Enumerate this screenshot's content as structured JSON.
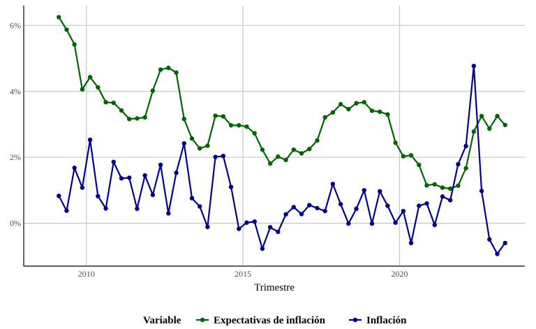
{
  "chart_data": {
    "type": "line",
    "title": "",
    "xlabel": "Trimestre",
    "ylabel": "",
    "xlim": [
      2008.0,
      2024.0
    ],
    "ylim": [
      -1.3,
      6.6
    ],
    "x_ticks": [
      2010,
      2015,
      2020
    ],
    "x_tick_labels": [
      "2010",
      "2015",
      "2020"
    ],
    "y_ticks": [
      0,
      2,
      4,
      6
    ],
    "y_tick_labels": [
      "0%",
      "2%",
      "4%",
      "6%"
    ],
    "grid": true,
    "legend": {
      "title": "Variable",
      "position": "bottom"
    },
    "x": [
      2009.12,
      2009.37,
      2009.62,
      2009.87,
      2010.12,
      2010.37,
      2010.62,
      2010.87,
      2011.12,
      2011.37,
      2011.62,
      2011.87,
      2012.12,
      2012.37,
      2012.62,
      2012.87,
      2013.12,
      2013.37,
      2013.62,
      2013.87,
      2014.12,
      2014.37,
      2014.62,
      2014.87,
      2015.12,
      2015.37,
      2015.62,
      2015.87,
      2016.12,
      2016.37,
      2016.62,
      2016.87,
      2017.12,
      2017.37,
      2017.62,
      2017.87,
      2018.12,
      2018.37,
      2018.62,
      2018.87,
      2019.12,
      2019.37,
      2019.62,
      2019.87,
      2020.12,
      2020.37,
      2020.62,
      2020.87,
      2021.12,
      2021.37,
      2021.62,
      2021.87,
      2022.12,
      2022.37,
      2022.62,
      2022.87,
      2023.12,
      2023.37
    ],
    "series": [
      {
        "name": "Expectativas de inflación",
        "color": "#006400",
        "values": [
          6.25,
          5.87,
          5.42,
          4.06,
          4.43,
          4.12,
          3.67,
          3.65,
          3.42,
          3.16,
          3.18,
          3.21,
          4.02,
          4.66,
          4.71,
          4.57,
          3.16,
          2.57,
          2.27,
          2.35,
          3.26,
          3.24,
          2.97,
          2.97,
          2.93,
          2.73,
          2.23,
          1.81,
          2.02,
          1.92,
          2.23,
          2.12,
          2.25,
          2.51,
          3.21,
          3.36,
          3.61,
          3.46,
          3.64,
          3.67,
          3.41,
          3.38,
          3.3,
          2.44,
          2.03,
          2.06,
          1.77,
          1.15,
          1.18,
          1.08,
          1.05,
          1.14,
          1.67,
          2.78,
          3.25,
          2.87,
          3.25,
          2.98
        ]
      },
      {
        "name": "Inflación",
        "color": "#00008b",
        "values": [
          0.83,
          0.38,
          1.68,
          1.08,
          2.53,
          0.82,
          0.45,
          1.86,
          1.36,
          1.38,
          0.44,
          1.45,
          0.86,
          1.77,
          0.3,
          1.53,
          2.42,
          0.76,
          0.51,
          -0.11,
          2.01,
          2.04,
          1.1,
          -0.17,
          0.02,
          0.05,
          -0.77,
          -0.12,
          -0.26,
          0.27,
          0.49,
          0.28,
          0.55,
          0.46,
          0.37,
          1.19,
          0.58,
          -0.01,
          0.44,
          1.0,
          -0.01,
          0.97,
          0.53,
          0.02,
          0.37,
          -0.6,
          0.53,
          0.6,
          -0.05,
          0.81,
          0.7,
          1.79,
          2.34,
          4.77,
          0.98,
          -0.49,
          -0.93,
          -0.6
        ]
      }
    ]
  }
}
